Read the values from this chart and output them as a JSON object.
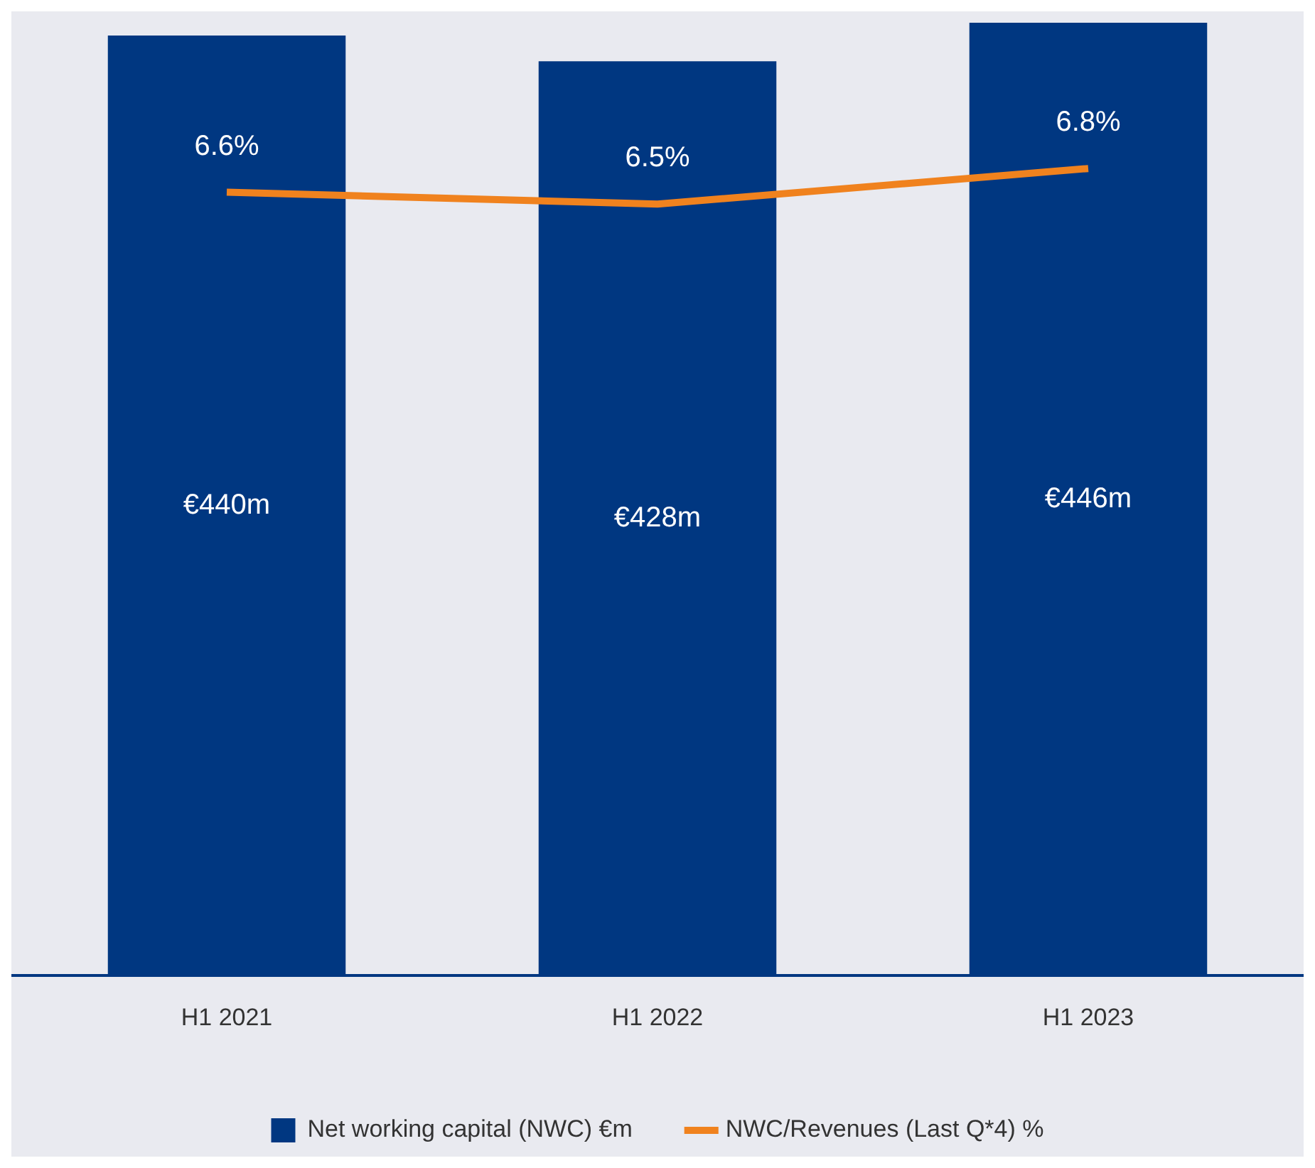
{
  "chart_data": {
    "type": "bar",
    "categories": [
      "H1 2021",
      "H1 2022",
      "H1 2023"
    ],
    "series": [
      {
        "name": "Net working capital (NWC) €m",
        "color": "#003781",
        "values": [
          440,
          428,
          446
        ],
        "value_labels": [
          "€440m",
          "€428m",
          "€446m"
        ]
      },
      {
        "name": "NWC/Revenues (Last Q*4) %",
        "type": "line",
        "axis": "y2",
        "color": "#f0821e",
        "values": [
          6.6,
          6.5,
          6.8
        ],
        "value_labels": [
          "6.6%",
          "6.5%",
          "6.8%"
        ]
      }
    ],
    "ylim": [
      0,
      450
    ],
    "y2lim": [
      0,
      8.1
    ],
    "tick_labels": "x",
    "grid": false,
    "legend": "bottom",
    "marker": "none"
  }
}
